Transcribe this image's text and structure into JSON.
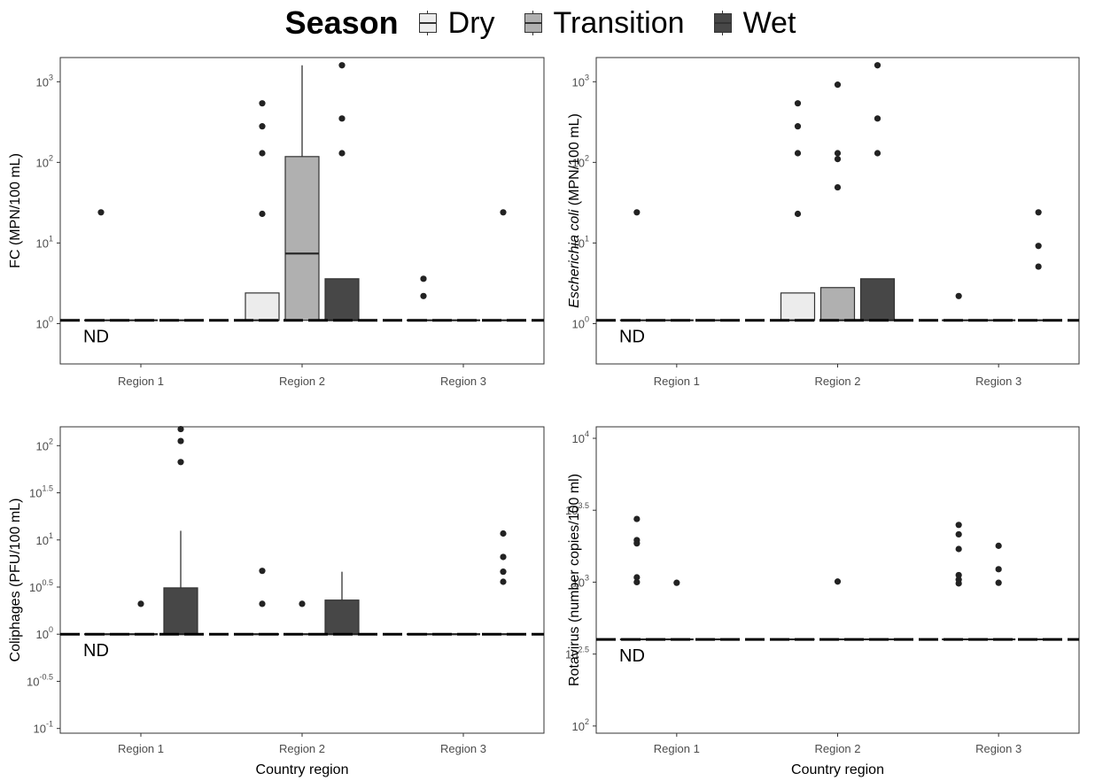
{
  "legend": {
    "title": "Season",
    "items": [
      {
        "label": "Dry",
        "color": "#ececec"
      },
      {
        "label": "Transition",
        "color": "#b0b0b0"
      },
      {
        "label": "Wet",
        "color": "#474747"
      }
    ]
  },
  "chart_data": [
    {
      "type": "box",
      "scale": "log10",
      "ylabel": "FC (MPN/100 mL)",
      "ylabel_italic": "",
      "ylabel_rest": "",
      "xlabel": "",
      "categories": [
        "Region 1",
        "Region 2",
        "Region 3"
      ],
      "ylim_log": [
        -0.5,
        3.3
      ],
      "yticks": [
        {
          "v": 0,
          "lbl": "10"
        },
        {
          "v": 1,
          "lbl": "10"
        },
        {
          "v": 2,
          "lbl": "10"
        },
        {
          "v": 3,
          "lbl": "10"
        }
      ],
      "ytick_exp": [
        "0",
        "1",
        "2",
        "3"
      ],
      "nd_level": 1.1,
      "nd_label": "ND",
      "series": [
        {
          "name": "Dry",
          "boxes": [
            {
              "q1": 1.1,
              "median": 1.1,
              "q3": 1.1,
              "whisker_low": 1.1,
              "whisker_high": 1.1,
              "outliers": [
                24
              ]
            },
            {
              "q1": 1.1,
              "median": 1.1,
              "q3": 2.4,
              "whisker_low": 1.1,
              "whisker_high": 2.4,
              "outliers": [
                23,
                130,
                280,
                540
              ]
            },
            {
              "q1": 1.1,
              "median": 1.1,
              "q3": 1.1,
              "whisker_low": 1.1,
              "whisker_high": 1.1,
              "outliers": [
                2.2,
                3.6
              ]
            }
          ]
        },
        {
          "name": "Transition",
          "boxes": [
            {
              "q1": 1.1,
              "median": 1.1,
              "q3": 1.1,
              "whisker_low": 1.1,
              "whisker_high": 1.1,
              "outliers": []
            },
            {
              "q1": 1.1,
              "median": 7.4,
              "q3": 118,
              "whisker_low": 1.1,
              "whisker_high": 1600,
              "outliers": []
            },
            {
              "q1": 1.1,
              "median": 1.1,
              "q3": 1.1,
              "whisker_low": 1.1,
              "whisker_high": 1.1,
              "outliers": []
            }
          ]
        },
        {
          "name": "Wet",
          "boxes": [
            {
              "q1": 1.1,
              "median": 1.1,
              "q3": 1.1,
              "whisker_low": 1.1,
              "whisker_high": 1.1,
              "outliers": []
            },
            {
              "q1": 1.1,
              "median": 1.1,
              "q3": 3.6,
              "whisker_low": 1.1,
              "whisker_high": 3.6,
              "outliers": [
                130,
                350,
                1600
              ]
            },
            {
              "q1": 1.1,
              "median": 1.1,
              "q3": 1.1,
              "whisker_low": 1.1,
              "whisker_high": 1.1,
              "outliers": [
                24
              ]
            }
          ]
        }
      ]
    },
    {
      "type": "box",
      "scale": "log10",
      "ylabel": "",
      "ylabel_italic": "Escherichia coli",
      "ylabel_rest": " (MPN/100 mL)",
      "xlabel": "",
      "categories": [
        "Region 1",
        "Region 2",
        "Region 3"
      ],
      "ylim_log": [
        -0.5,
        3.3
      ],
      "yticks": [
        {
          "v": 0,
          "lbl": "10"
        },
        {
          "v": 1,
          "lbl": "10"
        },
        {
          "v": 2,
          "lbl": "10"
        },
        {
          "v": 3,
          "lbl": "10"
        }
      ],
      "ytick_exp": [
        "0",
        "1",
        "2",
        "3"
      ],
      "nd_level": 1.1,
      "nd_label": "ND",
      "series": [
        {
          "name": "Dry",
          "boxes": [
            {
              "q1": 1.1,
              "median": 1.1,
              "q3": 1.1,
              "whisker_low": 1.1,
              "whisker_high": 1.1,
              "outliers": [
                24
              ]
            },
            {
              "q1": 1.1,
              "median": 1.1,
              "q3": 2.4,
              "whisker_low": 1.1,
              "whisker_high": 2.4,
              "outliers": [
                23,
                130,
                280,
                540
              ]
            },
            {
              "q1": 1.1,
              "median": 1.1,
              "q3": 1.1,
              "whisker_low": 1.1,
              "whisker_high": 1.1,
              "outliers": [
                2.2
              ]
            }
          ]
        },
        {
          "name": "Transition",
          "boxes": [
            {
              "q1": 1.1,
              "median": 1.1,
              "q3": 1.1,
              "whisker_low": 1.1,
              "whisker_high": 1.1,
              "outliers": []
            },
            {
              "q1": 1.1,
              "median": 1.1,
              "q3": 2.8,
              "whisker_low": 1.1,
              "whisker_high": 2.8,
              "outliers": [
                49,
                110,
                130,
                920
              ]
            },
            {
              "q1": 1.1,
              "median": 1.1,
              "q3": 1.1,
              "whisker_low": 1.1,
              "whisker_high": 1.1,
              "outliers": []
            }
          ]
        },
        {
          "name": "Wet",
          "boxes": [
            {
              "q1": 1.1,
              "median": 1.1,
              "q3": 1.1,
              "whisker_low": 1.1,
              "whisker_high": 1.1,
              "outliers": []
            },
            {
              "q1": 1.1,
              "median": 1.1,
              "q3": 3.6,
              "whisker_low": 1.1,
              "whisker_high": 3.6,
              "outliers": [
                130,
                350,
                1600
              ]
            },
            {
              "q1": 1.1,
              "median": 1.1,
              "q3": 1.1,
              "whisker_low": 1.1,
              "whisker_high": 1.1,
              "outliers": [
                5.1,
                9.2,
                24
              ]
            }
          ]
        }
      ]
    },
    {
      "type": "box",
      "scale": "log10",
      "ylabel": "Coliphages (PFU/100 mL)",
      "ylabel_italic": "",
      "ylabel_rest": "",
      "xlabel": "Country region",
      "categories": [
        "Region 1",
        "Region 2",
        "Region 3"
      ],
      "ylim_log": [
        -1.05,
        2.2
      ],
      "yticks": [
        {
          "v": -1,
          "lbl": "10"
        },
        {
          "v": -0.5,
          "lbl": "10"
        },
        {
          "v": 0,
          "lbl": "10"
        },
        {
          "v": 0.5,
          "lbl": "10"
        },
        {
          "v": 1,
          "lbl": "10"
        },
        {
          "v": 1.5,
          "lbl": "10"
        },
        {
          "v": 2,
          "lbl": "10"
        }
      ],
      "ytick_exp": [
        "-1",
        "-0.5",
        "0",
        "0.5",
        "1",
        "1.5",
        "2"
      ],
      "nd_level": 1.0,
      "nd_label": "ND",
      "series": [
        {
          "name": "Dry",
          "boxes": [
            {
              "q1": 1,
              "median": 1,
              "q3": 1,
              "whisker_low": 1,
              "whisker_high": 1,
              "outliers": []
            },
            {
              "q1": 1,
              "median": 1,
              "q3": 1,
              "whisker_low": 1,
              "whisker_high": 1,
              "outliers": [
                2.1,
                4.7
              ]
            },
            {
              "q1": 1,
              "median": 1,
              "q3": 1,
              "whisker_low": 1,
              "whisker_high": 1,
              "outliers": []
            }
          ]
        },
        {
          "name": "Transition",
          "boxes": [
            {
              "q1": 1,
              "median": 1,
              "q3": 1,
              "whisker_low": 1,
              "whisker_high": 1,
              "outliers": [
                2.1
              ]
            },
            {
              "q1": 1,
              "median": 1,
              "q3": 1,
              "whisker_low": 1,
              "whisker_high": 1,
              "outliers": [
                2.1
              ]
            },
            {
              "q1": 1,
              "median": 1,
              "q3": 1,
              "whisker_low": 1,
              "whisker_high": 1,
              "outliers": []
            }
          ]
        },
        {
          "name": "Wet",
          "boxes": [
            {
              "q1": 1,
              "median": 1,
              "q3": 3.1,
              "whisker_low": 1,
              "whisker_high": 12.5,
              "outliers": [
                67,
                112,
                150
              ]
            },
            {
              "q1": 1,
              "median": 1,
              "q3": 2.3,
              "whisker_low": 1,
              "whisker_high": 4.6,
              "outliers": []
            },
            {
              "q1": 1,
              "median": 1,
              "q3": 1,
              "whisker_low": 1,
              "whisker_high": 1,
              "outliers": [
                3.6,
                4.6,
                6.6,
                11.7
              ]
            }
          ]
        }
      ]
    },
    {
      "type": "box",
      "scale": "log10",
      "ylabel": "Rotavirus (number copies/100 ml)",
      "ylabel_italic": "",
      "ylabel_rest": "",
      "xlabel": "Country region",
      "categories": [
        "Region 1",
        "Region 2",
        "Region 3"
      ],
      "ylim_log": [
        1.95,
        4.08
      ],
      "yticks": [
        {
          "v": 2,
          "lbl": "10"
        },
        {
          "v": 2.5,
          "lbl": "10"
        },
        {
          "v": 3,
          "lbl": "10"
        },
        {
          "v": 3.5,
          "lbl": "10"
        },
        {
          "v": 4,
          "lbl": "10"
        }
      ],
      "ytick_exp": [
        "2",
        "2.5",
        "3",
        "3.5",
        "4"
      ],
      "nd_level": 400,
      "nd_label": "ND",
      "series": [
        {
          "name": "Dry",
          "boxes": [
            {
              "q1": 400,
              "median": 400,
              "q3": 400,
              "whisker_low": 400,
              "whisker_high": 400,
              "outliers": [
                1000,
                1080,
                1860,
                1960,
                2750
              ]
            },
            {
              "q1": 400,
              "median": 400,
              "q3": 400,
              "whisker_low": 400,
              "whisker_high": 400,
              "outliers": []
            },
            {
              "q1": 400,
              "median": 400,
              "q3": 400,
              "whisker_low": 400,
              "whisker_high": 400,
              "outliers": [
                980,
                1040,
                1120,
                1700,
                2150,
                2500
              ]
            }
          ]
        },
        {
          "name": "Transition",
          "boxes": [
            {
              "q1": 400,
              "median": 400,
              "q3": 400,
              "whisker_low": 400,
              "whisker_high": 400,
              "outliers": [
                990
              ]
            },
            {
              "q1": 400,
              "median": 400,
              "q3": 400,
              "whisker_low": 400,
              "whisker_high": 400,
              "outliers": [
                1010
              ]
            },
            {
              "q1": 400,
              "median": 400,
              "q3": 400,
              "whisker_low": 400,
              "whisker_high": 400,
              "outliers": [
                990,
                1230,
                1790
              ]
            }
          ]
        },
        {
          "name": "Wet",
          "boxes": [
            {
              "q1": 400,
              "median": 400,
              "q3": 400,
              "whisker_low": 400,
              "whisker_high": 400,
              "outliers": []
            },
            {
              "q1": 400,
              "median": 400,
              "q3": 400,
              "whisker_low": 400,
              "whisker_high": 400,
              "outliers": []
            },
            {
              "q1": 400,
              "median": 400,
              "q3": 400,
              "whisker_low": 400,
              "whisker_high": 400,
              "outliers": []
            }
          ]
        }
      ]
    }
  ]
}
